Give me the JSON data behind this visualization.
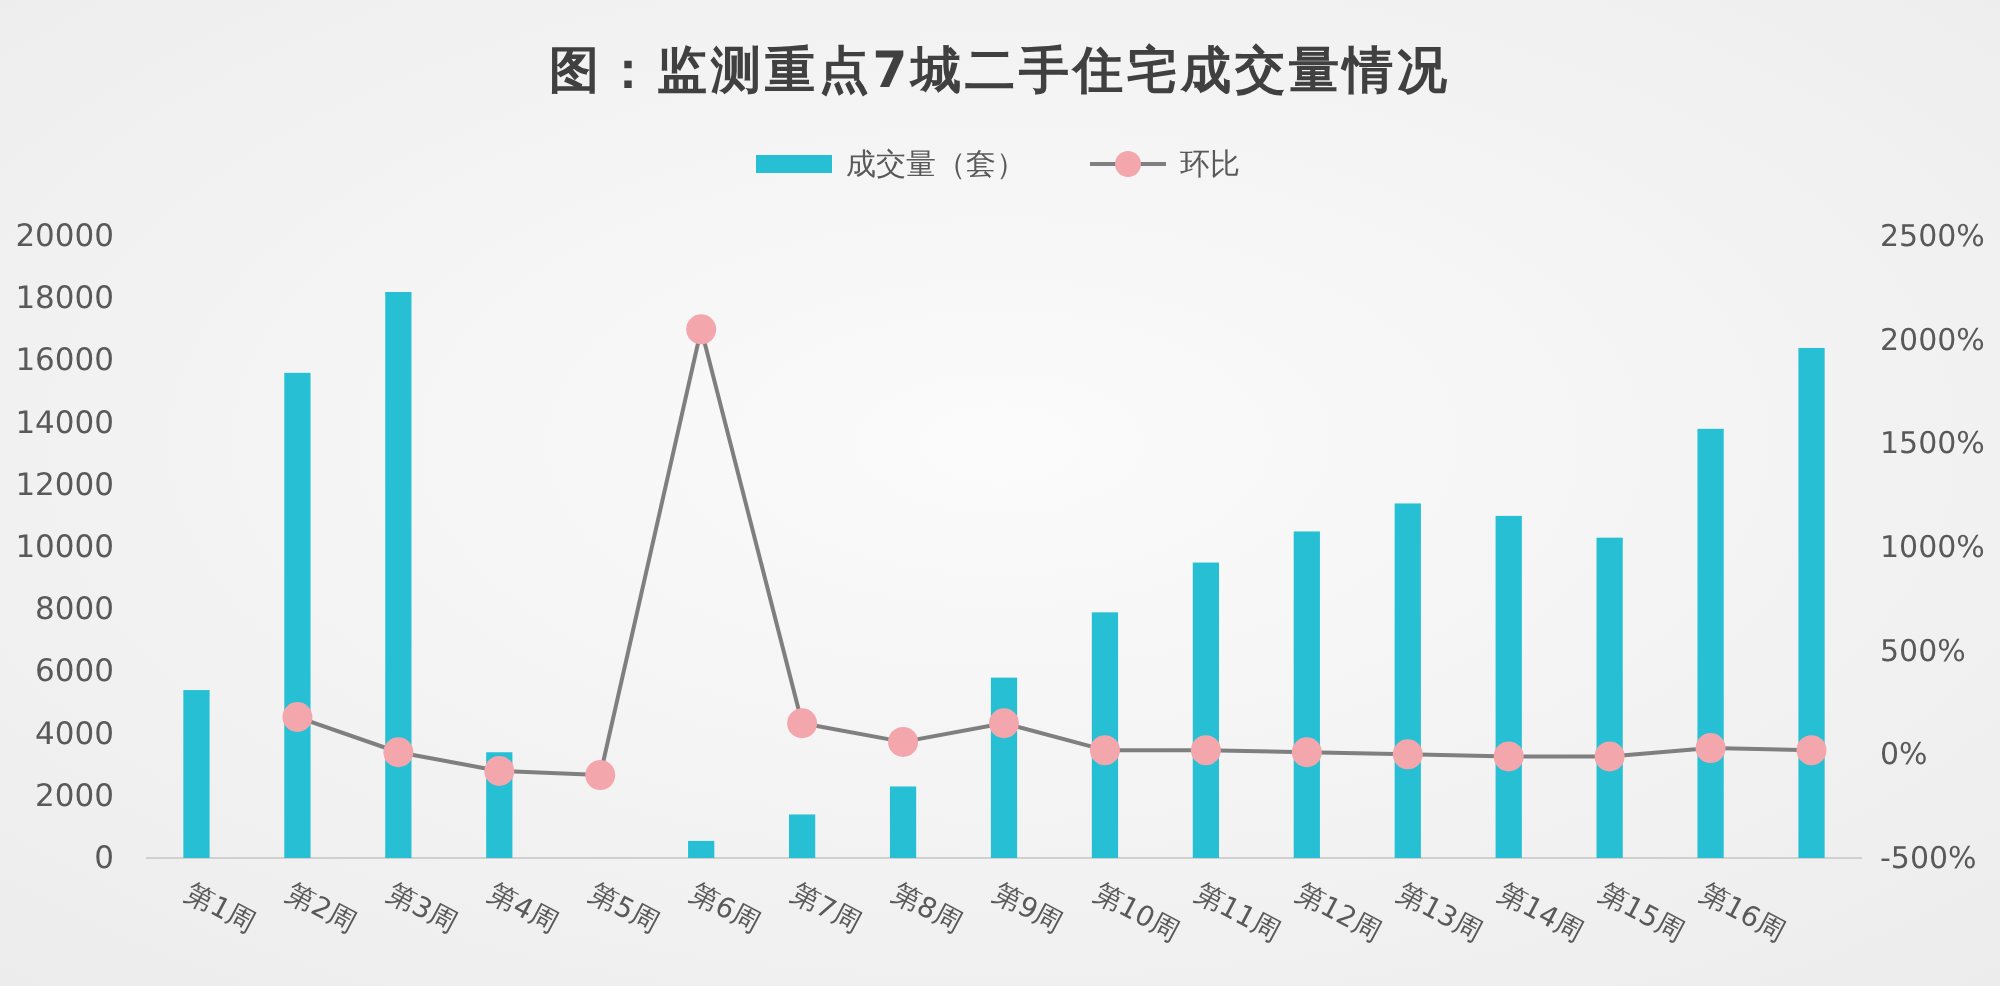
{
  "chart_data": {
    "type": "bar",
    "title": "图：监测重点7城二手住宅成交量情况",
    "categories": [
      "第1周",
      "第2周",
      "第3周",
      "第4周",
      "第5周",
      "第6周",
      "第7周",
      "第8周",
      "第9周",
      "第10周",
      "第11周",
      "第12周",
      "第13周",
      "第14周",
      "第15周",
      "第16周",
      null
    ],
    "series": [
      {
        "name": "成交量（套）",
        "color": "#26bfd3",
        "values": [
          5400,
          15600,
          18200,
          3400,
          null,
          550,
          1400,
          2300,
          5800,
          7900,
          9500,
          10500,
          11400,
          11000,
          10300,
          13800,
          16400
        ]
      },
      {
        "name": "环比",
        "type": "line",
        "axis": "y2",
        "color": "#7f7f7f",
        "colors": [
          "#f4a6ad",
          "#f4a6ad",
          "#f4a6ad",
          "#f4a6ad",
          "#f4a6ad",
          "#f4a6ad",
          "#f4a6ad",
          "#f4a6ad",
          "#f4a6ad",
          "#f4a6ad",
          "#f4a6ad",
          "#f4a6ad",
          "#f4a6ad",
          "#f4a6ad",
          "#f4a6ad",
          "#f4a6ad",
          "#f4a6ad"
        ],
        "values": [
          null,
          180,
          10,
          -80,
          -100,
          2050,
          150,
          60,
          150,
          20,
          20,
          10,
          0,
          -10,
          -10,
          30,
          20
        ]
      }
    ],
    "ylim": [
      0,
      20000
    ],
    "yticks": [
      0,
      2000,
      4000,
      6000,
      8000,
      10000,
      12000,
      14000,
      16000,
      18000,
      20000
    ],
    "y2lim": [
      -500,
      2500
    ],
    "y2ticks": [
      {
        "value": -500,
        "label": "-500%"
      },
      {
        "value": 0,
        "label": "0%"
      },
      {
        "value": 500,
        "label": "500%"
      },
      {
        "value": 1000,
        "label": "1000%"
      },
      {
        "value": 1500,
        "label": "1500%"
      },
      {
        "value": 2000,
        "label": "2000%"
      },
      {
        "value": 2500,
        "label": "2500%"
      }
    ],
    "legend": "top",
    "marker": "circle"
  }
}
